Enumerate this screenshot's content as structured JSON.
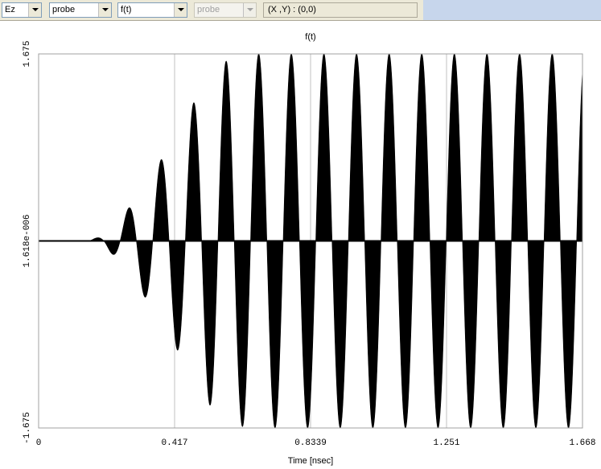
{
  "toolbar": {
    "field_select": "Ez",
    "probe_select": "probe",
    "function_select": "f(t)",
    "probe_select_2": "probe",
    "coordinate_readout": "(X ,Y) : (0,0)"
  },
  "colors": {
    "toolbar_bg": "#ece9d8",
    "toolbar_accent": "#c7d6ec",
    "plot_fill": "#000000",
    "grid": "#c0c0c0"
  },
  "chart_data": {
    "type": "line",
    "title": "f(t)",
    "xlabel": "Time [nsec]",
    "ylabel": "",
    "xlim": [
      0,
      1.668
    ],
    "ylim": [
      -1.675,
      1.675
    ],
    "x_tick_labels": [
      "0",
      "0.417",
      "0.8339",
      "1.251",
      "1.668"
    ],
    "y_tick_labels": [
      "-1.675",
      "1.618e-006",
      "1.675"
    ],
    "grid": true,
    "series": [
      {
        "style": "filled-oscillation",
        "period_nsec": 0.1,
        "envelope": {
          "t": [
            0,
            0.15,
            0.2,
            0.25,
            0.3,
            0.35,
            0.4,
            0.45,
            0.5,
            0.55,
            0.6,
            0.65,
            0.7,
            1.668
          ],
          "amplitude": [
            0,
            0,
            0.05,
            0.18,
            0.4,
            0.6,
            0.85,
            1.1,
            1.37,
            1.57,
            1.65,
            1.675,
            1.675,
            1.675
          ]
        }
      }
    ]
  }
}
